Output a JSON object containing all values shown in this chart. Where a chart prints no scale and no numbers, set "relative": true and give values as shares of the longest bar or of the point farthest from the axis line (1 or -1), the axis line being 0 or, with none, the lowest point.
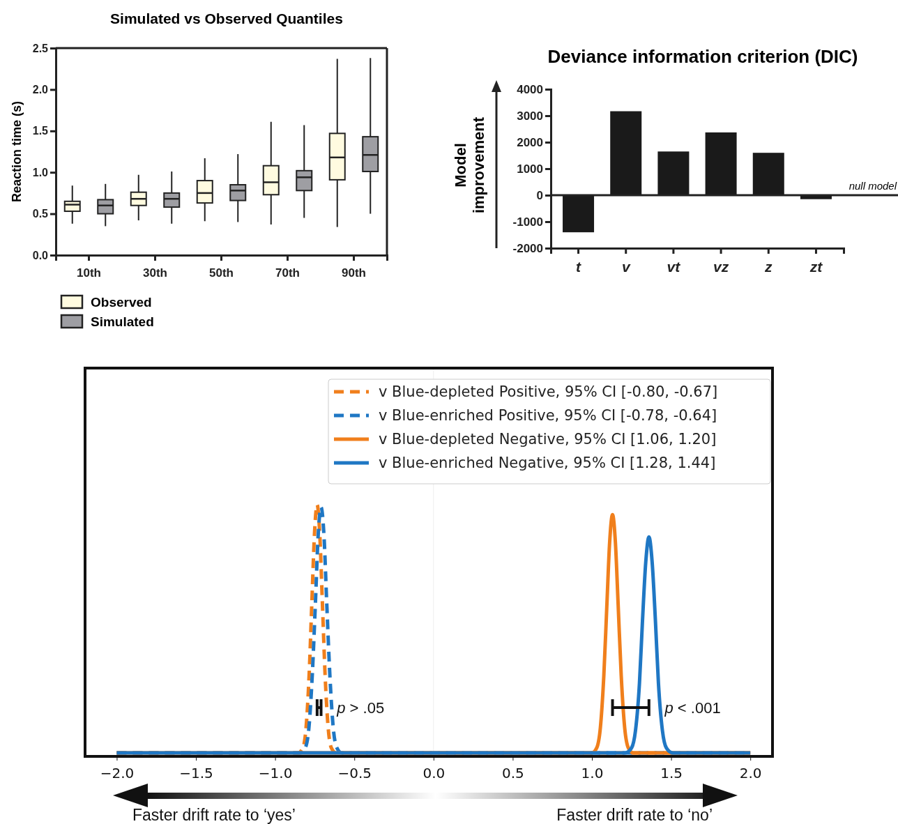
{
  "chart_data": [
    {
      "type": "box",
      "title": "Simulated vs Observed Quantiles",
      "ylabel": "Reaction time (s)",
      "categories": [
        "10th",
        "30th",
        "50th",
        "70th",
        "90th"
      ],
      "ylim": [
        0,
        2.5
      ],
      "yticks": [
        {
          "value": 0,
          "label": "0.0"
        },
        0.5,
        {
          "value": 1,
          "label": "1.0"
        },
        1.5,
        {
          "value": 2,
          "label": "2.0"
        },
        2.5
      ],
      "legend": "bottom left",
      "series": [
        {
          "name": "Observed",
          "color": "#fffbe0",
          "boxes": [
            {
              "low": 0.38,
              "q1": 0.53,
              "median": 0.61,
              "q3": 0.65,
              "high": 0.84
            },
            {
              "low": 0.42,
              "q1": 0.6,
              "median": 0.68,
              "q3": 0.76,
              "high": 0.97
            },
            {
              "low": 0.41,
              "q1": 0.63,
              "median": 0.75,
              "q3": 0.9,
              "high": 1.17
            },
            {
              "low": 0.37,
              "q1": 0.73,
              "median": 0.88,
              "q3": 1.08,
              "high": 1.61
            },
            {
              "low": 0.34,
              "q1": 0.91,
              "median": 1.18,
              "q3": 1.47,
              "high": 2.37
            }
          ]
        },
        {
          "name": "Simulated",
          "color": "#9e9ea3",
          "boxes": [
            {
              "low": 0.35,
              "q1": 0.5,
              "median": 0.6,
              "q3": 0.67,
              "high": 0.86
            },
            {
              "low": 0.38,
              "q1": 0.58,
              "median": 0.68,
              "q3": 0.75,
              "high": 1.01
            },
            {
              "low": 0.4,
              "q1": 0.66,
              "median": 0.78,
              "q3": 0.85,
              "high": 1.22
            },
            {
              "low": 0.45,
              "q1": 0.78,
              "median": 0.94,
              "q3": 1.02,
              "high": 1.57
            },
            {
              "low": 0.5,
              "q1": 1.01,
              "median": 1.21,
              "q3": 1.43,
              "high": 2.38
            }
          ]
        }
      ]
    },
    {
      "type": "bar",
      "title": "Deviance information criterion (DIC)",
      "ylabel": "Model improvement",
      "categories": [
        "t",
        "v",
        "vt",
        "vz",
        "z",
        "zt"
      ],
      "values": [
        -1400,
        3170,
        1650,
        2370,
        1600,
        -150
      ],
      "color": "#1a1a1a",
      "ylim": [
        -2000,
        4000
      ],
      "yticks": [
        -2000,
        -1000,
        0,
        1000,
        2000,
        3000,
        4000
      ],
      "ref_lines": [
        {
          "axis": "y",
          "value": 0,
          "label": "null model"
        }
      ]
    },
    {
      "type": "line",
      "relative": true,
      "xlim": [
        -2.2,
        2.14
      ],
      "xticks": [
        {
          "value": -2,
          "label": "−2.0"
        },
        {
          "value": -1.5,
          "label": "−1.5"
        },
        {
          "value": -1,
          "label": "−1.0"
        },
        {
          "value": -0.5,
          "label": "−0.5"
        },
        {
          "value": 0,
          "label": "0.0"
        },
        {
          "value": 0.5,
          "label": "0.5"
        },
        {
          "value": 1,
          "label": "1.0"
        },
        {
          "value": 1.5,
          "label": "1.5"
        },
        {
          "value": 2,
          "label": "2.0"
        }
      ],
      "legend": "top right",
      "ref_lines": [
        {
          "axis": "x",
          "value": 0,
          "color": "#eeeeee"
        }
      ],
      "annotations": [
        "p > .05",
        "p < .001",
        "Faster drift rate to ‘yes’",
        "Faster drift rate to ‘no’"
      ],
      "series": [
        {
          "name": "v Blue-depleted Positive, 95% CI [-0.80, -0.67]",
          "color": "#f07f1c",
          "line_style": "dashed",
          "x": [
            -2,
            -0.855,
            -0.825,
            -0.805,
            -0.785,
            -0.768,
            -0.751,
            -0.735,
            -0.719,
            -0.702,
            -0.685,
            -0.665,
            -0.645,
            -0.615,
            2
          ],
          "values": [
            0,
            0,
            0.02,
            0.1,
            0.32,
            0.61,
            0.89,
            1,
            0.89,
            0.61,
            0.32,
            0.1,
            0.02,
            0,
            0
          ]
        },
        {
          "name": "v Blue-enriched Positive, 95% CI [-0.78, -0.64]",
          "color": "#1f77c4",
          "line_style": "dashed",
          "x": [
            -2,
            -0.84,
            -0.81,
            -0.787,
            -0.765,
            -0.746,
            -0.728,
            -0.71,
            -0.692,
            -0.674,
            -0.655,
            -0.633,
            -0.61,
            -0.58,
            2
          ],
          "values": [
            0,
            0,
            0.02,
            0.1,
            0.32,
            0.6,
            0.88,
            0.99,
            0.88,
            0.6,
            0.32,
            0.1,
            0.02,
            0,
            0
          ]
        },
        {
          "name": "v Blue-depleted Negative, 95% CI [1.06, 1.20]",
          "color": "#f07f1c",
          "line_style": "solid",
          "x": [
            -2,
            1.0,
            1.03,
            1.053,
            1.075,
            1.094,
            1.112,
            1.13,
            1.148,
            1.166,
            1.185,
            1.207,
            1.23,
            1.26,
            2
          ],
          "values": [
            0,
            0,
            0.02,
            0.1,
            0.31,
            0.59,
            0.85,
            0.96,
            0.85,
            0.59,
            0.31,
            0.1,
            0.02,
            0,
            0
          ]
        },
        {
          "name": "v Blue-enriched Negative, 95% CI [1.28, 1.44]",
          "color": "#1f77c4",
          "line_style": "solid",
          "x": [
            -2,
            1.21,
            1.25,
            1.275,
            1.3,
            1.319,
            1.34,
            1.36,
            1.38,
            1.401,
            1.42,
            1.445,
            1.47,
            1.51,
            2
          ],
          "values": [
            0,
            0,
            0.02,
            0.09,
            0.28,
            0.53,
            0.77,
            0.87,
            0.77,
            0.53,
            0.28,
            0.09,
            0.02,
            0,
            0
          ]
        }
      ]
    }
  ]
}
